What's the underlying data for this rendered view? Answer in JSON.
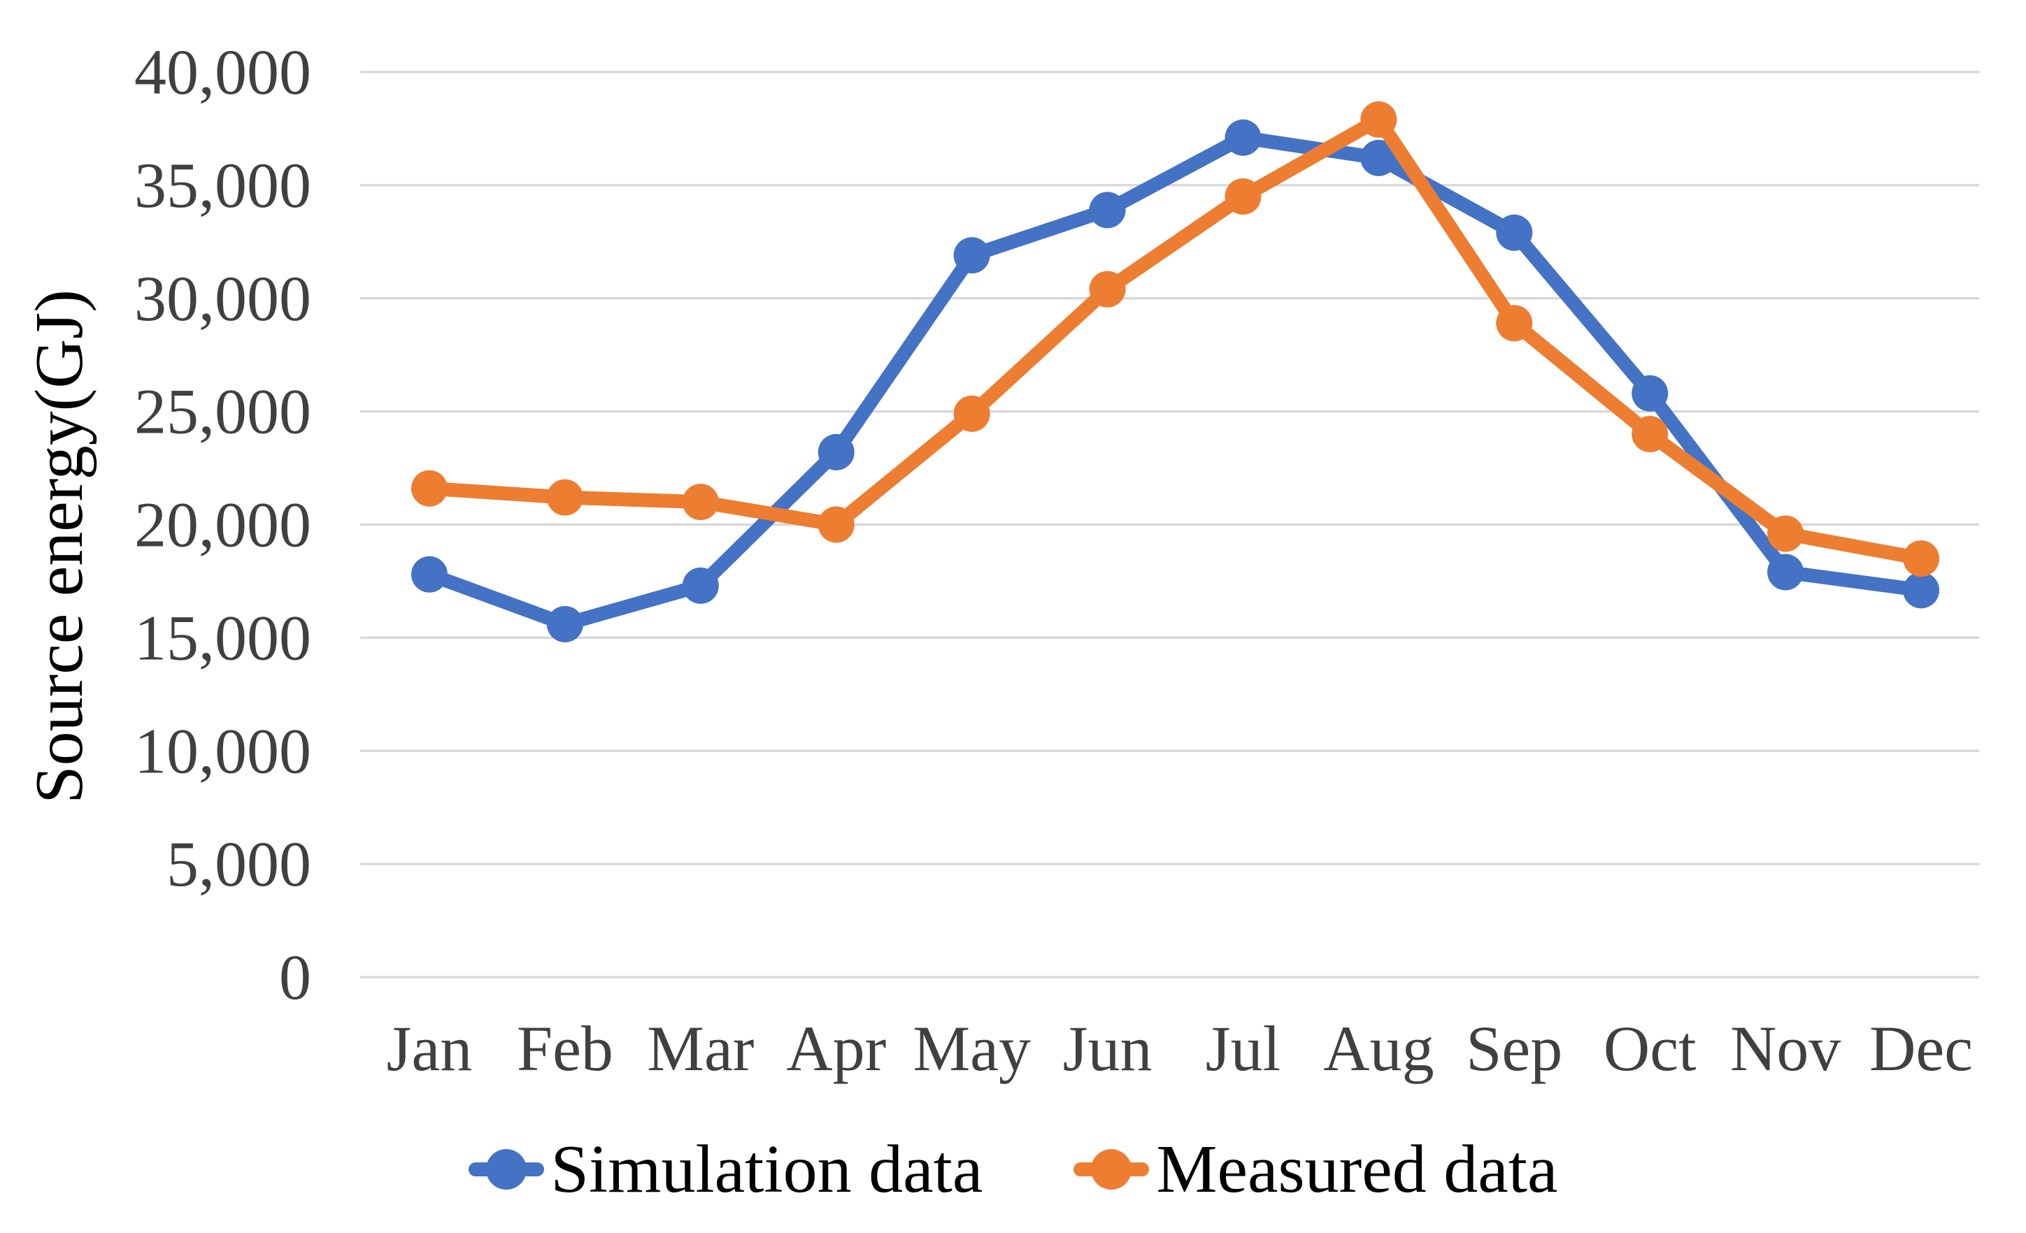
{
  "chart_data": {
    "type": "line",
    "title": "",
    "xlabel": "",
    "ylabel": "Source energy(GJ)",
    "categories": [
      "Jan",
      "Feb",
      "Mar",
      "Apr",
      "May",
      "Jun",
      "Jul",
      "Aug",
      "Sep",
      "Oct",
      "Nov",
      "Dec"
    ],
    "series": [
      {
        "name": "Simulation data",
        "color": "#4472C4",
        "marker": "circle",
        "values": [
          17800,
          15600,
          17300,
          23200,
          31900,
          33900,
          37100,
          36200,
          32900,
          25800,
          17900,
          17100
        ]
      },
      {
        "name": "Measured data",
        "color": "#ED7D31",
        "marker": "circle",
        "values": [
          21600,
          21200,
          21000,
          20000,
          24900,
          30400,
          34500,
          37900,
          28900,
          24000,
          19600,
          18500
        ]
      }
    ],
    "yticks": [
      {
        "v": 0,
        "label": "0"
      },
      {
        "v": 5000,
        "label": "5,000"
      },
      {
        "v": 10000,
        "label": "10,000"
      },
      {
        "v": 15000,
        "label": "15,000"
      },
      {
        "v": 20000,
        "label": "20,000"
      },
      {
        "v": 25000,
        "label": "25,000"
      },
      {
        "v": 30000,
        "label": "30,000"
      },
      {
        "v": 35000,
        "label": "35,000"
      },
      {
        "v": 40000,
        "label": "40,000"
      }
    ],
    "ylim": [
      0,
      40000
    ],
    "grid": "horizontal",
    "grid_color": "#D9D9D9",
    "axis_text_color": "#404040",
    "legend_position": "bottom"
  }
}
